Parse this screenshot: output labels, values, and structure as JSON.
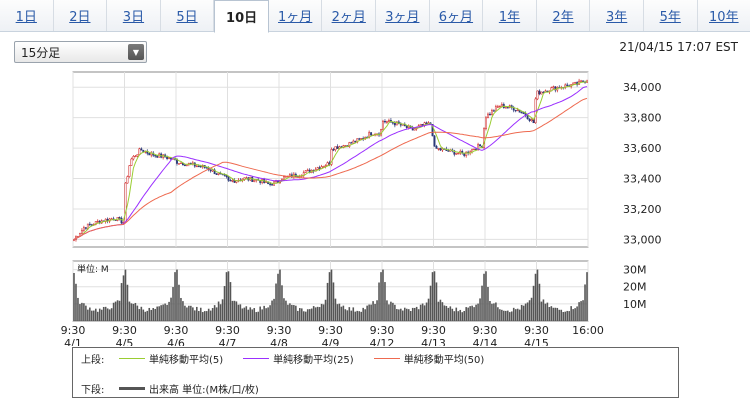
{
  "tabs": [
    {
      "label": "1日",
      "active": false
    },
    {
      "label": "2日",
      "active": false
    },
    {
      "label": "3日",
      "active": false
    },
    {
      "label": "5日",
      "active": false
    },
    {
      "label": "10日",
      "active": true
    },
    {
      "label": "1ヶ月",
      "active": false
    },
    {
      "label": "2ヶ月",
      "active": false
    },
    {
      "label": "3ヶ月",
      "active": false
    },
    {
      "label": "6ヶ月",
      "active": false
    },
    {
      "label": "1年",
      "active": false
    },
    {
      "label": "2年",
      "active": false
    },
    {
      "label": "3年",
      "active": false
    },
    {
      "label": "5年",
      "active": false
    },
    {
      "label": "10年",
      "active": false
    }
  ],
  "interval_select": {
    "value": "15分足"
  },
  "timestamp": "21/04/15 17:07 EST",
  "chart_data": [
    {
      "type": "candlestick",
      "title": "",
      "ylim": [
        32950,
        34100
      ],
      "yticks": [
        "34,000",
        "33,800",
        "33,600",
        "33,400",
        "33,200",
        "33,000"
      ],
      "ytick_values": [
        34000,
        33800,
        33600,
        33400,
        33200,
        33000
      ],
      "price_path": [
        [
          0,
          33000
        ],
        [
          0.2,
          33080
        ],
        [
          0.5,
          33120
        ],
        [
          0.8,
          33140
        ],
        [
          0.98,
          33110
        ],
        [
          1.0,
          33350
        ],
        [
          1.1,
          33520
        ],
        [
          1.3,
          33590
        ],
        [
          1.5,
          33560
        ],
        [
          1.8,
          33540
        ],
        [
          1.98,
          33520
        ],
        [
          2.0,
          33510
        ],
        [
          2.3,
          33490
        ],
        [
          2.6,
          33470
        ],
        [
          2.8,
          33430
        ],
        [
          2.98,
          33400
        ],
        [
          3.0,
          33380
        ],
        [
          3.3,
          33400
        ],
        [
          3.6,
          33390
        ],
        [
          3.8,
          33360
        ],
        [
          3.98,
          33380
        ],
        [
          4.0,
          33400
        ],
        [
          4.3,
          33420
        ],
        [
          4.6,
          33450
        ],
        [
          4.8,
          33480
        ],
        [
          4.98,
          33500
        ],
        [
          5.0,
          33600
        ],
        [
          5.3,
          33620
        ],
        [
          5.6,
          33660
        ],
        [
          5.8,
          33700
        ],
        [
          5.98,
          33700
        ],
        [
          6.0,
          33780
        ],
        [
          6.3,
          33760
        ],
        [
          6.6,
          33720
        ],
        [
          6.8,
          33750
        ],
        [
          6.98,
          33760
        ],
        [
          7.0,
          33600
        ],
        [
          7.3,
          33580
        ],
        [
          7.6,
          33560
        ],
        [
          7.8,
          33600
        ],
        [
          7.98,
          33620
        ],
        [
          8.0,
          33800
        ],
        [
          8.3,
          33880
        ],
        [
          8.6,
          33860
        ],
        [
          8.8,
          33820
        ],
        [
          8.98,
          33760
        ],
        [
          9.0,
          33960
        ],
        [
          9.3,
          33990
        ],
        [
          9.6,
          34010
        ],
        [
          9.8,
          34020
        ],
        [
          10.0,
          34050
        ]
      ],
      "series": [
        {
          "name": "単純移動平均(5)",
          "color": "#9acd32"
        },
        {
          "name": "単純移動平均(25)",
          "color": "#9b30ff"
        },
        {
          "name": "単純移動平均(50)",
          "color": "#ee6a50"
        }
      ]
    },
    {
      "type": "bar",
      "unit_label": "単位: M",
      "ylim": [
        0,
        35
      ],
      "yticks": [
        "30M",
        "20M",
        "10M"
      ],
      "ytick_values": [
        30,
        20,
        10
      ],
      "pattern": "intraday U-shape, spikes at open and close of each session",
      "session_peaks": [
        28,
        30,
        30,
        29,
        30,
        30,
        30,
        29,
        29,
        30
      ],
      "color": "#555555"
    }
  ],
  "xaxis": {
    "times": [
      "9:30",
      "9:30",
      "9:30",
      "9:30",
      "9:30",
      "9:30",
      "9:30",
      "9:30",
      "9:30",
      "9:30",
      "16:00"
    ],
    "dates": [
      "4/1",
      "4/5",
      "4/6",
      "4/7",
      "4/8",
      "4/9",
      "4/12",
      "4/13",
      "4/14",
      "4/15",
      ""
    ]
  },
  "legend": {
    "upper_label": "上段:",
    "lower_label": "下段:",
    "ma5": {
      "label": "単純移動平均(5)",
      "color": "#9acd32"
    },
    "ma25": {
      "label": "単純移動平均(25)",
      "color": "#9b30ff"
    },
    "ma50": {
      "label": "単純移動平均(50)",
      "color": "#ee6a50"
    },
    "volume": {
      "label": "出来高 単位:(M株/口/枚)",
      "color": "#555555"
    }
  }
}
